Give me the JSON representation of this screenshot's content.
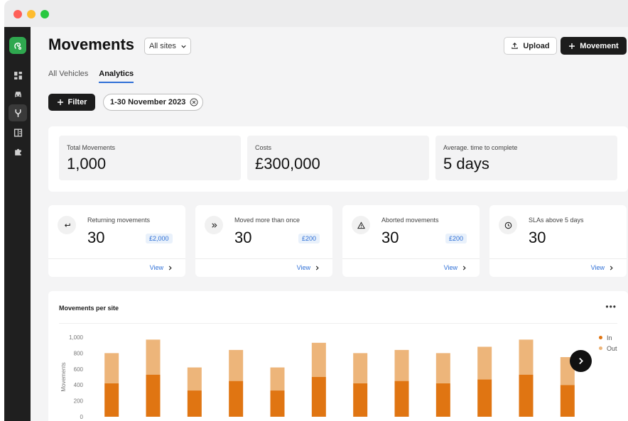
{
  "app": {
    "page_title": "Movements",
    "site_select": "All sites",
    "upload_label": "Upload",
    "movement_label": "Movement"
  },
  "sidebar": {
    "items": [
      {
        "icon": "dashboard-icon",
        "active": false
      },
      {
        "icon": "car-icon",
        "active": false
      },
      {
        "icon": "fork-icon",
        "active": true
      },
      {
        "icon": "building-icon",
        "active": false
      },
      {
        "icon": "puzzle-icon",
        "active": false
      }
    ]
  },
  "tabs": [
    {
      "label": "All Vehicles",
      "active": false
    },
    {
      "label": "Analytics",
      "active": true
    }
  ],
  "filters": {
    "filter_label": "Filter",
    "date_range": "1-30 November 2023"
  },
  "totals": [
    {
      "label": "Total Movements",
      "value": "1,000"
    },
    {
      "label": "Costs",
      "value": "£300,000"
    },
    {
      "label": "Average. time to complete",
      "value": "5 days"
    }
  ],
  "stats": [
    {
      "icon": "return-arrow-icon",
      "label": "Returning movements",
      "value": "30",
      "badge": "£2,000",
      "view": "View"
    },
    {
      "icon": "double-chevron-icon",
      "label": "Moved more than once",
      "value": "30",
      "badge": "£200",
      "view": "View"
    },
    {
      "icon": "warning-icon",
      "label": "Aborted movements",
      "value": "30",
      "badge": "£200",
      "view": "View"
    },
    {
      "icon": "clock-icon",
      "label": "SLAs above 5 days",
      "value": "30",
      "badge": "",
      "view": "View"
    }
  ],
  "chart_data": {
    "type": "bar",
    "title": "Movements per site",
    "ylabel": "Movements",
    "xlabel": "",
    "ylim": [
      0,
      1000
    ],
    "y_ticks": [
      "0",
      "200",
      "400",
      "600",
      "800",
      "1,000"
    ],
    "categories": [
      "",
      "",
      "",
      "",
      "",
      "",
      "",
      "",
      "",
      "",
      "",
      ""
    ],
    "stacked": true,
    "series": [
      {
        "name": "In",
        "color": "#e07512",
        "values": [
          420,
          530,
          330,
          450,
          330,
          500,
          420,
          450,
          420,
          470,
          530,
          400
        ]
      },
      {
        "name": "Out",
        "color": "#edb57a",
        "values": [
          380,
          440,
          290,
          390,
          290,
          430,
          380,
          390,
          380,
          410,
          440,
          350
        ]
      }
    ],
    "legend_position": "top-right",
    "grid": false
  },
  "colors": {
    "accent": "#2e6fd6",
    "brand": "#2fa84f",
    "dark": "#1c1c1c"
  }
}
